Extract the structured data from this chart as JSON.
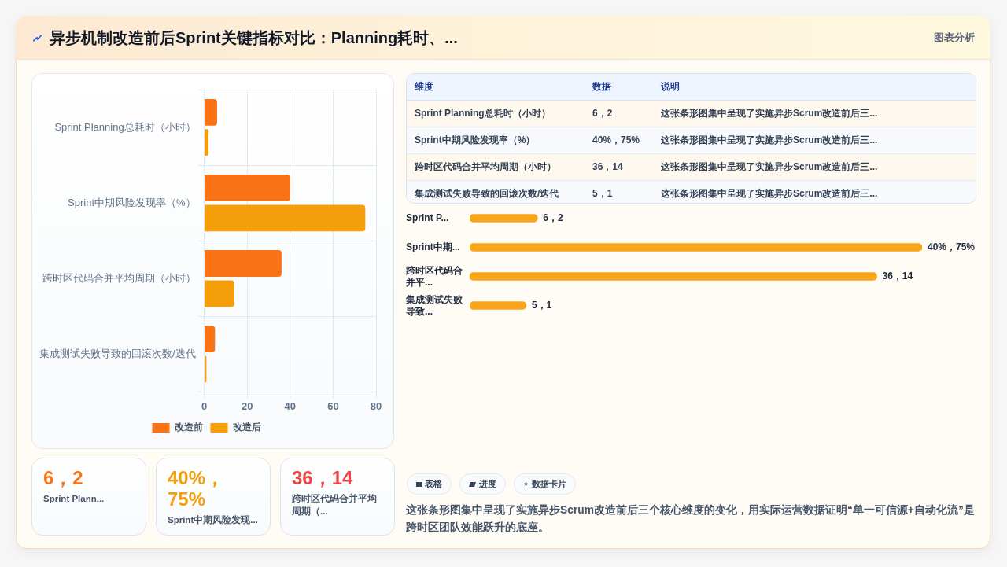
{
  "chart_data": [
    {
      "type": "other",
      "title": "异步机制改造前后Sprint关键指标对比：Planning耗时、...",
      "annotations": [
        "图表分析"
      ]
    },
    {
      "type": "bar",
      "orientation": "horizontal",
      "categories": [
        "Sprint Planning总耗时（小时）",
        "Sprint中期风险发现率（%）",
        "跨时区代码合并平均周期（小时）",
        "集成测试失败导致的回滚次数/迭代"
      ],
      "series": [
        {
          "name": "改造前",
          "color": "#f97316",
          "values": [
            6,
            40,
            36,
            5
          ]
        },
        {
          "name": "改造后",
          "color": "#f59e0b",
          "values": [
            2,
            75,
            14,
            1
          ]
        }
      ],
      "xlim": [
        0,
        80
      ],
      "xticks": [
        0,
        20,
        40,
        60,
        80
      ],
      "grid": true,
      "legend": "bottom"
    },
    {
      "type": "other",
      "categories": [
        "Sprint Planning总耗时（小时）",
        "Sprint中期风险发现率（%）",
        "跨时区代码合并平均周期（小时）",
        "集成测试失败导致的回滚次数/迭代"
      ],
      "value_labels": [
        "6，2",
        "40%，75%",
        "36，14",
        "5，1"
      ],
      "annotations": [
        "维度",
        "数据",
        "说明",
        "这张条形图集中呈现了实施异步Scrum改造前后三...",
        "这张条形图集中呈现了实施异步Scrum改造前后三...",
        "这张条形图集中呈现了实施异步Scrum改造前后三...",
        "这张条形图集中呈现了实施异步Scrum改造前后三..."
      ]
    },
    {
      "type": "bar",
      "orientation": "horizontal",
      "tick_labels": "y",
      "categories": [
        "Sprint P...",
        "Sprint中期...",
        "跨时区代码合并平...",
        "集成测试失败导致..."
      ],
      "values": [
        6,
        40,
        36,
        5
      ],
      "value_labels": [
        "6，2",
        "40%，75%",
        "36，14",
        "5，1"
      ],
      "color": "#f8a51a"
    },
    {
      "type": "other",
      "categories": [
        "Sprint Plann...",
        "Sprint中期风险发现...",
        "跨时区代码合并平均周期（..."
      ],
      "value_labels": [
        "6，2",
        "40%，75%",
        "36，14"
      ]
    },
    {
      "type": "other",
      "annotations": [
        "表格",
        "进度",
        "数据卡片",
        "这张条形图集中呈现了实施异步Scrum改造前后三个核心维度的变化，用实际运营数据证明“单一可信源+自动化流”是跨时区团队效能跃升的底座。"
      ]
    }
  ]
}
